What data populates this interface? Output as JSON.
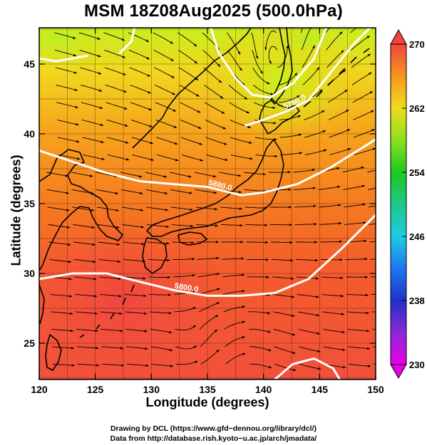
{
  "title": "MSM 18Z08Aug2025 (500.0hPa)",
  "chart_data": {
    "type": "heatmap",
    "title": "MSM 18Z08Aug2025 (500.0hPa)",
    "xlabel": "Longitude (degrees)",
    "ylabel": "Latitude  (degrees)",
    "xlim": [
      120,
      150
    ],
    "ylim": [
      22.4,
      47.6
    ],
    "x_ticks": [
      120,
      125,
      130,
      135,
      140,
      145,
      150
    ],
    "y_ticks": [
      25,
      30,
      35,
      40,
      45
    ],
    "x_tick_labels": [
      "120",
      "125",
      "130",
      "135",
      "140",
      "145",
      "150"
    ],
    "y_tick_labels": [
      "25",
      "30",
      "35",
      "40",
      "45"
    ],
    "gridlines": true,
    "colorbar": {
      "min": 230,
      "max": 270,
      "ticks": [
        230,
        238,
        246,
        254,
        262,
        270
      ],
      "tick_labels": [
        "230",
        "238",
        "246",
        "254",
        "262",
        "270"
      ],
      "placement": "right"
    },
    "contours": [
      {
        "label": "5880.0",
        "points": [
          [
            120,
            38.8
          ],
          [
            123,
            38.0
          ],
          [
            126,
            37.2
          ],
          [
            129,
            36.6
          ],
          [
            132,
            36.4
          ],
          [
            135,
            36.2
          ],
          [
            138,
            35.6
          ],
          [
            140,
            35.8
          ],
          [
            143,
            36.4
          ],
          [
            146,
            37.6
          ],
          [
            150,
            39.6
          ]
        ]
      },
      {
        "label": "5800.0",
        "points": [
          [
            120,
            29.6
          ],
          [
            123,
            30.0
          ],
          [
            126,
            30.0
          ],
          [
            129,
            29.4
          ],
          [
            132,
            28.8
          ],
          [
            135,
            28.4
          ],
          [
            138,
            28.4
          ],
          [
            141,
            28.6
          ],
          [
            144,
            29.6
          ],
          [
            147,
            31.8
          ],
          [
            150,
            34.2
          ]
        ]
      },
      {
        "label": "5760.0",
        "points": [
          [
            138.4,
            40.6
          ],
          [
            140,
            41.0
          ],
          [
            142,
            41.6
          ],
          [
            144,
            42.4
          ],
          [
            146,
            44.4
          ],
          [
            148,
            46.4
          ],
          [
            149.5,
            47.6
          ]
        ]
      },
      {
        "label": "",
        "points": [
          [
            120,
            45.4
          ],
          [
            121.5,
            45.2
          ],
          [
            123,
            45.4
          ],
          [
            124.3,
            45.6
          ]
        ]
      },
      {
        "label": "",
        "points": [
          [
            127.2,
            45.8
          ],
          [
            128.2,
            46.6
          ],
          [
            128.5,
            47.6
          ]
        ]
      },
      {
        "label": "",
        "points": [
          [
            135.3,
            47.6
          ],
          [
            136,
            45.8
          ],
          [
            137.5,
            44.0
          ],
          [
            139,
            42.8
          ],
          [
            140.6,
            42.6
          ],
          [
            142.6,
            43.6
          ],
          [
            144.5,
            45.4
          ],
          [
            145.6,
            47.6
          ]
        ]
      },
      {
        "label": "",
        "points": [
          [
            141,
            22.4
          ],
          [
            142.6,
            23.5
          ],
          [
            144.5,
            23.9
          ],
          [
            146.2,
            23.2
          ],
          [
            146.8,
            22.4
          ]
        ]
      }
    ],
    "annotations": []
  },
  "credits": {
    "line1": "Drawing by DCL (https://www.gfd−dennou.org/library/dcl/)",
    "line2": "Data from http://database.rish.kyoto−u.ac.jp/arch/jmadata/"
  }
}
